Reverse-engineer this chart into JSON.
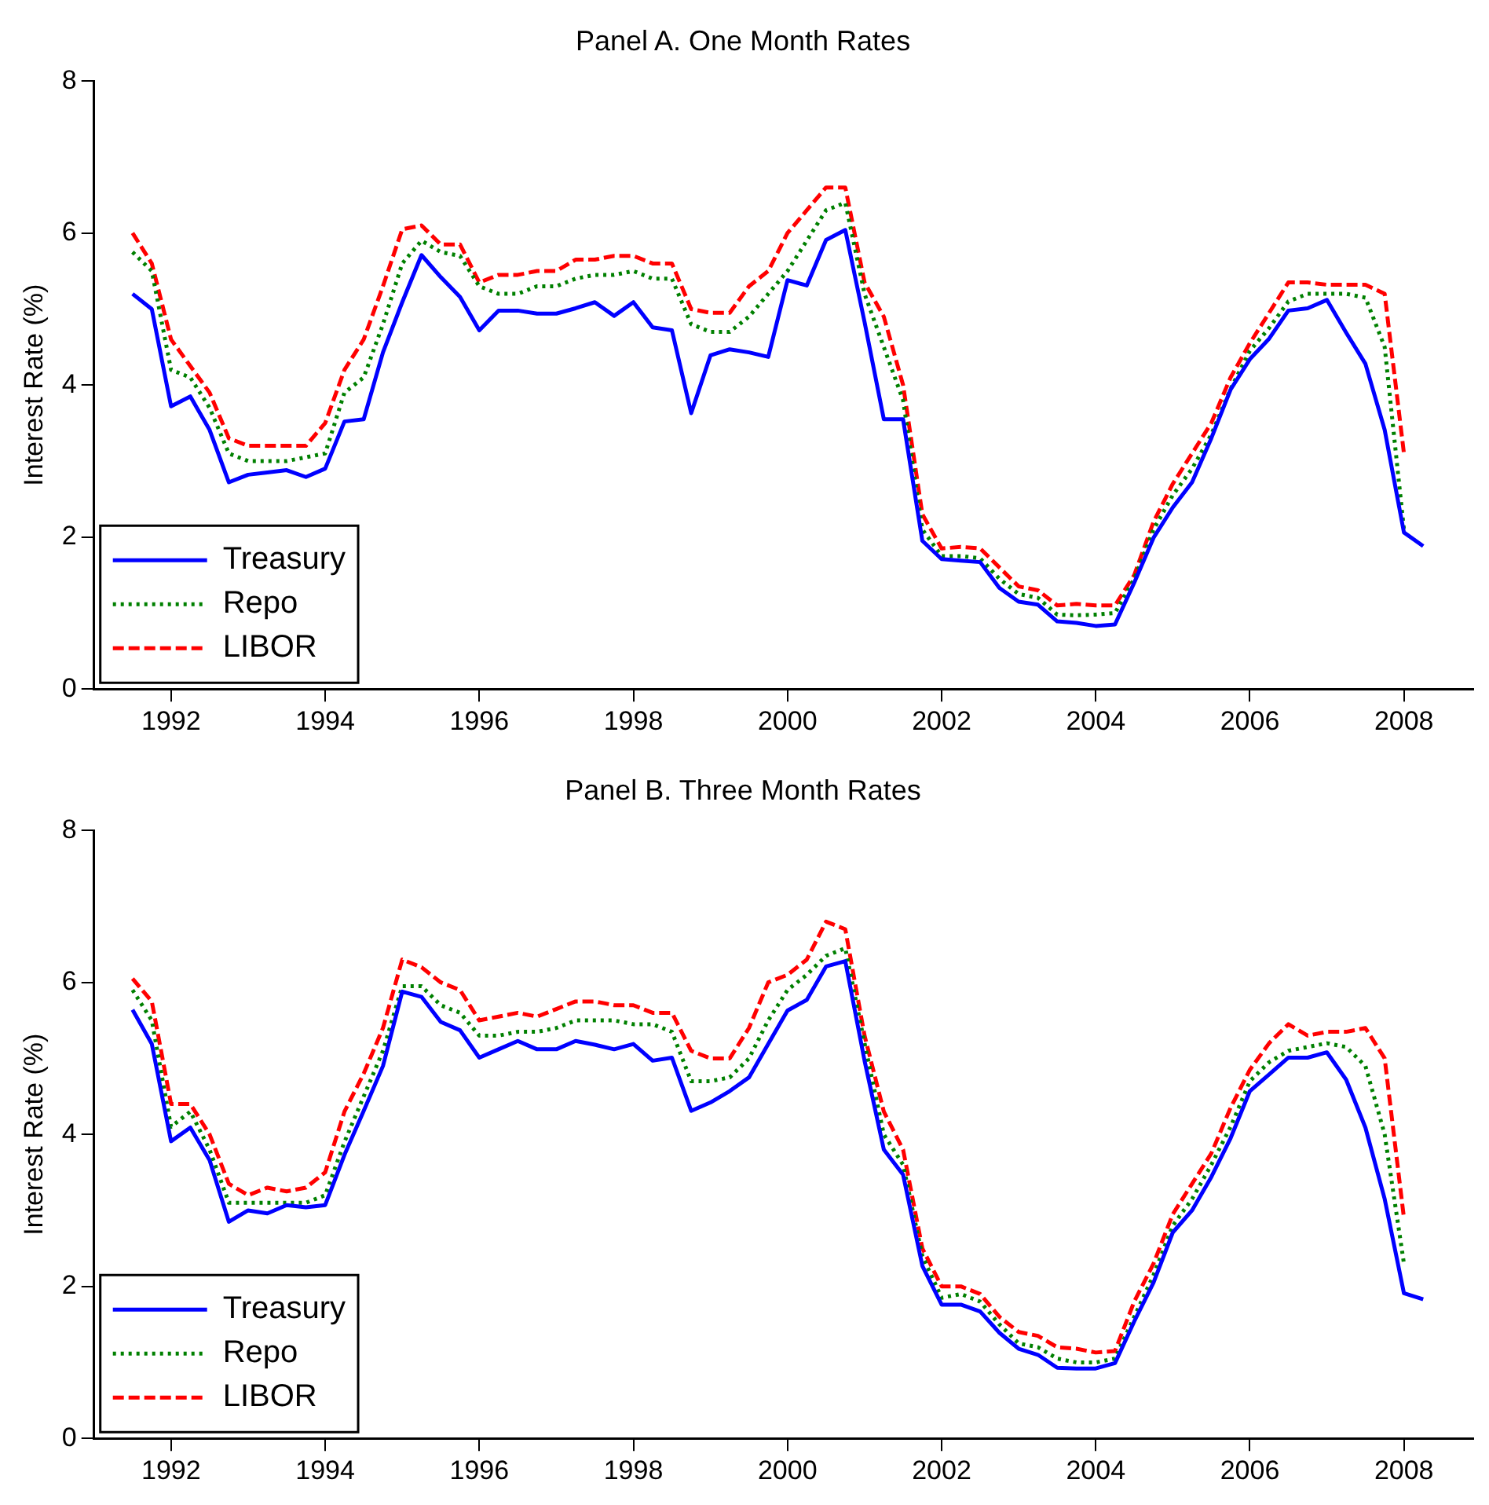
{
  "chart_data": [
    {
      "type": "line",
      "title": "Panel A. One Month Rates",
      "ylabel": "Interest Rate (%)",
      "legend": "bottom left",
      "grid": false,
      "x": [
        1991.5,
        1991.75,
        1992,
        1992.25,
        1992.5,
        1992.75,
        1993,
        1993.25,
        1993.5,
        1993.75,
        1994,
        1994.25,
        1994.5,
        1994.75,
        1995,
        1995.25,
        1995.5,
        1995.75,
        1996,
        1996.25,
        1996.5,
        1996.75,
        1997,
        1997.25,
        1997.5,
        1997.75,
        1998,
        1998.25,
        1998.5,
        1998.75,
        1999,
        1999.25,
        1999.5,
        1999.75,
        2000,
        2000.25,
        2000.5,
        2000.75,
        2001,
        2001.25,
        2001.5,
        2001.75,
        2002,
        2002.25,
        2002.5,
        2002.75,
        2003,
        2003.25,
        2003.5,
        2003.75,
        2004,
        2004.25,
        2004.5,
        2004.75,
        2005,
        2005.25,
        2005.5,
        2005.75,
        2006,
        2006.25,
        2006.5,
        2006.75,
        2007,
        2007.25,
        2007.5,
        2007.75,
        2008,
        2008.25
      ],
      "xlim": [
        1991,
        2008.9
      ],
      "xticks": [
        1992,
        1994,
        1996,
        1998,
        2000,
        2002,
        2004,
        2006,
        2008
      ],
      "ylim": [
        0,
        8
      ],
      "yticks": [
        0,
        2,
        4,
        6,
        8
      ],
      "series": [
        {
          "name": "Treasury",
          "color": "#0000ff",
          "line_style": "solid",
          "values": [
            5.2,
            5.0,
            3.72,
            3.85,
            3.41,
            2.72,
            2.82,
            2.85,
            2.88,
            2.79,
            2.9,
            3.52,
            3.55,
            4.43,
            5.09,
            5.71,
            5.42,
            5.16,
            4.72,
            4.98,
            4.98,
            4.94,
            4.94,
            5.01,
            5.09,
            4.91,
            5.09,
            4.76,
            4.72,
            3.63,
            4.39,
            4.47,
            4.43,
            4.37,
            5.38,
            5.31,
            5.91,
            6.04,
            4.83,
            3.55,
            3.55,
            1.95,
            1.71,
            1.69,
            1.67,
            1.33,
            1.15,
            1.11,
            0.89,
            0.87,
            0.83,
            0.85,
            1.4,
            1.99,
            2.39,
            2.72,
            3.3,
            3.94,
            4.34,
            4.61,
            4.98,
            5.01,
            5.12,
            4.69,
            4.28,
            3.41,
            2.06,
            1.88
          ]
        },
        {
          "name": "Repo",
          "color": "#008000",
          "line_style": "dotted",
          "values": [
            5.75,
            5.5,
            4.2,
            4.1,
            3.7,
            3.1,
            3.0,
            3.0,
            3.0,
            3.05,
            3.1,
            3.9,
            4.1,
            4.8,
            5.6,
            5.9,
            5.75,
            5.7,
            5.3,
            5.2,
            5.2,
            5.3,
            5.3,
            5.4,
            5.45,
            5.45,
            5.5,
            5.4,
            5.4,
            4.8,
            4.7,
            4.7,
            4.9,
            5.2,
            5.5,
            5.9,
            6.3,
            6.4,
            5.2,
            4.5,
            3.8,
            2.1,
            1.75,
            1.75,
            1.72,
            1.45,
            1.25,
            1.2,
            0.98,
            0.97,
            0.98,
            1.0,
            1.45,
            2.1,
            2.55,
            2.9,
            3.35,
            3.95,
            4.45,
            4.75,
            5.1,
            5.2,
            5.2,
            5.2,
            5.15,
            4.5,
            2.1,
            null
          ]
        },
        {
          "name": "LIBOR",
          "color": "#ff0000",
          "line_style": "dashed",
          "values": [
            6.0,
            5.6,
            4.6,
            4.25,
            3.9,
            3.3,
            3.2,
            3.2,
            3.2,
            3.2,
            3.5,
            4.2,
            4.6,
            5.3,
            6.05,
            6.1,
            5.85,
            5.85,
            5.35,
            5.45,
            5.45,
            5.5,
            5.5,
            5.65,
            5.65,
            5.7,
            5.7,
            5.6,
            5.6,
            5.0,
            4.95,
            4.95,
            5.3,
            5.5,
            6.0,
            6.3,
            6.6,
            6.6,
            5.35,
            4.9,
            4.0,
            2.3,
            1.85,
            1.87,
            1.85,
            1.6,
            1.35,
            1.3,
            1.1,
            1.12,
            1.1,
            1.1,
            1.5,
            2.2,
            2.7,
            3.1,
            3.5,
            4.1,
            4.55,
            4.95,
            5.35,
            5.35,
            5.32,
            5.32,
            5.32,
            5.2,
            3.1,
            null
          ]
        }
      ]
    },
    {
      "type": "line",
      "title": "Panel B. Three Month Rates",
      "ylabel": "Interest Rate (%)",
      "legend": "bottom left",
      "grid": false,
      "x": [
        1991.5,
        1991.75,
        1992,
        1992.25,
        1992.5,
        1992.75,
        1993,
        1993.25,
        1993.5,
        1993.75,
        1994,
        1994.25,
        1994.5,
        1994.75,
        1995,
        1995.25,
        1995.5,
        1995.75,
        1996,
        1996.25,
        1996.5,
        1996.75,
        1997,
        1997.25,
        1997.5,
        1997.75,
        1998,
        1998.25,
        1998.5,
        1998.75,
        1999,
        1999.25,
        1999.5,
        1999.75,
        2000,
        2000.25,
        2000.5,
        2000.75,
        2001,
        2001.25,
        2001.5,
        2001.75,
        2002,
        2002.25,
        2002.5,
        2002.75,
        2003,
        2003.25,
        2003.5,
        2003.75,
        2004,
        2004.25,
        2004.5,
        2004.75,
        2005,
        2005.25,
        2005.5,
        2005.75,
        2006,
        2006.25,
        2006.5,
        2006.75,
        2007,
        2007.25,
        2007.5,
        2007.75,
        2008,
        2008.25
      ],
      "xlim": [
        1991,
        2008.9
      ],
      "xticks": [
        1992,
        1994,
        1996,
        1998,
        2000,
        2002,
        2004,
        2006,
        2008
      ],
      "ylim": [
        0,
        8
      ],
      "yticks": [
        0,
        2,
        4,
        6,
        8
      ],
      "series": [
        {
          "name": "Treasury",
          "color": "#0000ff",
          "line_style": "solid",
          "values": [
            5.64,
            5.19,
            3.91,
            4.09,
            3.66,
            2.85,
            3.0,
            2.96,
            3.07,
            3.04,
            3.07,
            3.73,
            4.31,
            4.9,
            5.88,
            5.81,
            5.48,
            5.37,
            5.01,
            5.12,
            5.23,
            5.12,
            5.12,
            5.23,
            5.18,
            5.12,
            5.19,
            4.97,
            5.01,
            4.31,
            4.42,
            4.57,
            4.75,
            5.19,
            5.63,
            5.77,
            6.21,
            6.28,
            4.97,
            3.8,
            3.47,
            2.27,
            1.76,
            1.76,
            1.67,
            1.39,
            1.18,
            1.1,
            0.93,
            0.92,
            0.92,
            0.99,
            1.54,
            2.05,
            2.71,
            3.0,
            3.44,
            3.95,
            4.57,
            4.79,
            5.01,
            5.01,
            5.08,
            4.72,
            4.09,
            3.15,
            1.91,
            1.83
          ]
        },
        {
          "name": "Repo",
          "color": "#008000",
          "line_style": "dotted",
          "values": [
            5.9,
            5.5,
            4.1,
            4.3,
            3.8,
            3.1,
            3.1,
            3.1,
            3.1,
            3.1,
            3.2,
            3.9,
            4.5,
            5.1,
            5.95,
            5.95,
            5.7,
            5.6,
            5.3,
            5.3,
            5.35,
            5.35,
            5.4,
            5.5,
            5.5,
            5.5,
            5.45,
            5.45,
            5.35,
            4.7,
            4.7,
            4.75,
            5.0,
            5.5,
            5.9,
            6.1,
            6.35,
            6.45,
            5.2,
            4.0,
            3.6,
            2.4,
            1.85,
            1.9,
            1.8,
            1.5,
            1.25,
            1.2,
            1.05,
            1.0,
            1.0,
            1.05,
            1.6,
            2.15,
            2.8,
            3.15,
            3.6,
            4.1,
            4.7,
            4.95,
            5.1,
            5.15,
            5.2,
            5.15,
            4.9,
            4.0,
            2.3,
            null
          ]
        },
        {
          "name": "LIBOR",
          "color": "#ff0000",
          "line_style": "dashed",
          "values": [
            6.05,
            5.75,
            4.4,
            4.4,
            4.0,
            3.35,
            3.2,
            3.3,
            3.25,
            3.3,
            3.5,
            4.3,
            4.8,
            5.4,
            6.3,
            6.2,
            6.0,
            5.9,
            5.5,
            5.55,
            5.6,
            5.55,
            5.65,
            5.75,
            5.75,
            5.7,
            5.7,
            5.6,
            5.6,
            5.1,
            5.0,
            5.0,
            5.4,
            6.0,
            6.1,
            6.3,
            6.8,
            6.7,
            5.3,
            4.3,
            3.8,
            2.5,
            2.0,
            2.0,
            1.9,
            1.6,
            1.4,
            1.35,
            1.2,
            1.18,
            1.13,
            1.15,
            1.8,
            2.3,
            2.95,
            3.35,
            3.75,
            4.35,
            4.85,
            5.2,
            5.45,
            5.3,
            5.35,
            5.35,
            5.4,
            5.0,
            2.9,
            null
          ]
        }
      ]
    }
  ]
}
